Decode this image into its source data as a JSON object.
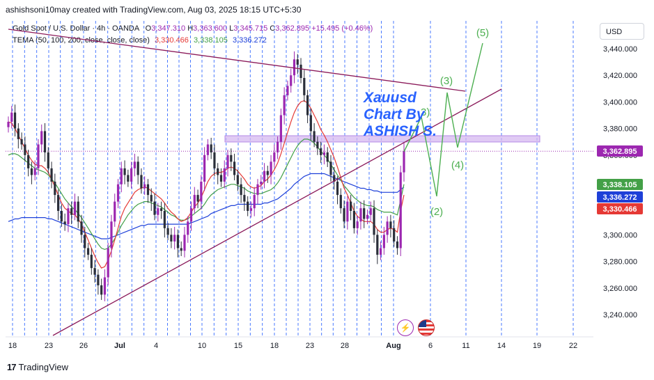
{
  "header": {
    "attribution": "ashishsoni10may created with TradingView.com, Aug 03, 2025 18:15 UTC+5:30"
  },
  "legend": {
    "symbol": "Gold Spot / U.S. Dollar · 4h · OANDA",
    "open_label": "O",
    "open": "3,347.310",
    "high_label": "H",
    "high": "3,363.600",
    "low_label": "L",
    "low": "3,345.715",
    "close_label": "C",
    "close": "3,362.895",
    "change": "+15.495 (+0.46%)",
    "indicator": "TEMA (50, 100, 200, close, close, close)",
    "tema1": "3,330.466",
    "tema2": "3,338.105",
    "tema3": "3,336.272"
  },
  "currency": "USD",
  "annotation": {
    "line1": "Xauusd",
    "line2": "Chart By",
    "line3": "ASHISH S."
  },
  "waves": [
    "(2)",
    "(3)",
    "(4)",
    "(5)"
  ],
  "wave3_partial": "3)",
  "brand": "TradingView",
  "colors": {
    "up": "#9c27b0",
    "down": "#2a2e39",
    "tema1": "#e53935",
    "tema2": "#43a047",
    "tema3": "#1e40d8",
    "trendline": "#8b1a5a",
    "waves": "#4caf50",
    "annotation": "#2962ff",
    "zone": "#d6b8f0"
  },
  "chart_data": {
    "type": "candlestick",
    "timeframe": "4h",
    "y_range": [
      3225,
      3460
    ],
    "y_ticks": [
      "3,440.000",
      "3,420.000",
      "3,400.000",
      "3,380.000",
      "3,360.000",
      "3,340.000",
      "3,320.000",
      "3,300.000",
      "3,280.000",
      "3,260.000",
      "3,240.000"
    ],
    "x_ticks": [
      "18",
      "23",
      "26",
      "Jul",
      "4",
      "10",
      "15",
      "18",
      "23",
      "28",
      "Aug",
      "6",
      "11",
      "14",
      "19",
      "22"
    ],
    "price_labels": [
      {
        "label": "3,362.895",
        "value": 3362.895,
        "color": "#9c27b0"
      },
      {
        "label": "3,338.105",
        "value": 3338.105,
        "color": "#43a047"
      },
      {
        "label": "3,336.272",
        "value": 3336.272,
        "color": "#1e40d8"
      },
      {
        "label": "3,330.466",
        "value": 3330.466,
        "color": "#e53935"
      }
    ],
    "resistance_zone": [
      3371,
      3375
    ],
    "close_series": [
      3385,
      3392,
      3380,
      3372,
      3368,
      3360,
      3350,
      3345,
      3350,
      3368,
      3378,
      3362,
      3350,
      3340,
      3330,
      3318,
      3310,
      3308,
      3320,
      3315,
      3325,
      3310,
      3300,
      3290,
      3285,
      3275,
      3270,
      3262,
      3255,
      3268,
      3290,
      3310,
      3325,
      3338,
      3350,
      3345,
      3340,
      3350,
      3355,
      3345,
      3335,
      3338,
      3330,
      3325,
      3315,
      3320,
      3318,
      3305,
      3300,
      3295,
      3300,
      3290,
      3288,
      3300,
      3310,
      3320,
      3330,
      3325,
      3340,
      3360,
      3368,
      3362,
      3350,
      3345,
      3340,
      3350,
      3360,
      3355,
      3345,
      3338,
      3330,
      3325,
      3318,
      3320,
      3330,
      3338,
      3340,
      3348,
      3345,
      3355,
      3362,
      3370,
      3390,
      3405,
      3412,
      3420,
      3432,
      3428,
      3418,
      3405,
      3390,
      3378,
      3370,
      3365,
      3360,
      3362,
      3355,
      3345,
      3340,
      3330,
      3320,
      3310,
      3325,
      3318,
      3305,
      3310,
      3320,
      3312,
      3315,
      3320,
      3300,
      3285,
      3290,
      3300,
      3310,
      3305,
      3295,
      3290,
      3347,
      3363
    ],
    "tema_50": [
      3385,
      3384,
      3380,
      3375,
      3370,
      3365,
      3360,
      3356,
      3353,
      3352,
      3352,
      3350,
      3347,
      3342,
      3336,
      3330,
      3324,
      3320,
      3318,
      3316,
      3315,
      3312,
      3308,
      3302,
      3296,
      3290,
      3284,
      3279,
      3275,
      3276,
      3281,
      3288,
      3296,
      3305,
      3314,
      3320,
      3324,
      3328,
      3332,
      3334,
      3335,
      3336,
      3335,
      3333,
      3331,
      3329,
      3327,
      3324,
      3320,
      3317,
      3315,
      3312,
      3310,
      3311,
      3313,
      3317,
      3321,
      3324,
      3328,
      3334,
      3340,
      3344,
      3346,
      3347,
      3347,
      3348,
      3350,
      3351,
      3350,
      3348,
      3345,
      3342,
      3338,
      3336,
      3335,
      3336,
      3337,
      3340,
      3342,
      3345,
      3349,
      3354,
      3361,
      3369,
      3377,
      3385,
      3392,
      3397,
      3400,
      3401,
      3399,
      3395,
      3390,
      3385,
      3379,
      3375,
      3370,
      3364,
      3358,
      3351,
      3343,
      3335,
      3330,
      3324,
      3318,
      3314,
      3312,
      3310,
      3310,
      3310,
      3308,
      3304,
      3302,
      3302,
      3304,
      3305,
      3304,
      3302,
      3318,
      3330
    ],
    "tema_100": [
      3360,
      3361,
      3361,
      3360,
      3358,
      3356,
      3354,
      3352,
      3350,
      3349,
      3348,
      3347,
      3345,
      3342,
      3339,
      3335,
      3331,
      3327,
      3324,
      3321,
      3319,
      3316,
      3313,
      3309,
      3305,
      3301,
      3297,
      3293,
      3290,
      3289,
      3290,
      3293,
      3297,
      3302,
      3307,
      3311,
      3315,
      3318,
      3321,
      3323,
      3324,
      3325,
      3325,
      3324,
      3323,
      3322,
      3321,
      3319,
      3317,
      3315,
      3314,
      3312,
      3311,
      3311,
      3312,
      3314,
      3316,
      3318,
      3320,
      3323,
      3327,
      3330,
      3332,
      3334,
      3335,
      3336,
      3337,
      3338,
      3338,
      3337,
      3336,
      3335,
      3333,
      3332,
      3331,
      3331,
      3331,
      3332,
      3333,
      3334,
      3336,
      3339,
      3343,
      3348,
      3353,
      3358,
      3363,
      3367,
      3370,
      3372,
      3372,
      3371,
      3369,
      3366,
      3363,
      3360,
      3357,
      3353,
      3349,
      3345,
      3341,
      3337,
      3334,
      3331,
      3328,
      3326,
      3324,
      3323,
      3322,
      3322,
      3321,
      3319,
      3318,
      3317,
      3317,
      3317,
      3316,
      3315,
      3326,
      3338
    ],
    "tema_200": [
      3310,
      3311,
      3312,
      3312,
      3313,
      3313,
      3313,
      3313,
      3313,
      3313,
      3313,
      3313,
      3312,
      3312,
      3311,
      3310,
      3309,
      3308,
      3307,
      3306,
      3305,
      3304,
      3303,
      3302,
      3301,
      3300,
      3299,
      3298,
      3297,
      3297,
      3297,
      3298,
      3299,
      3300,
      3301,
      3302,
      3303,
      3304,
      3305,
      3306,
      3307,
      3307,
      3308,
      3308,
      3308,
      3308,
      3308,
      3308,
      3308,
      3308,
      3308,
      3308,
      3308,
      3308,
      3308,
      3309,
      3310,
      3311,
      3312,
      3313,
      3314,
      3316,
      3317,
      3318,
      3319,
      3320,
      3321,
      3322,
      3322,
      3323,
      3323,
      3323,
      3323,
      3323,
      3323,
      3323,
      3323,
      3324,
      3324,
      3325,
      3326,
      3327,
      3329,
      3331,
      3333,
      3335,
      3338,
      3340,
      3342,
      3344,
      3345,
      3346,
      3346,
      3346,
      3346,
      3346,
      3345,
      3344,
      3343,
      3342,
      3341,
      3340,
      3339,
      3338,
      3337,
      3336,
      3335,
      3335,
      3334,
      3334,
      3333,
      3333,
      3332,
      3332,
      3332,
      3332,
      3332,
      3332,
      3334,
      3336
    ]
  }
}
